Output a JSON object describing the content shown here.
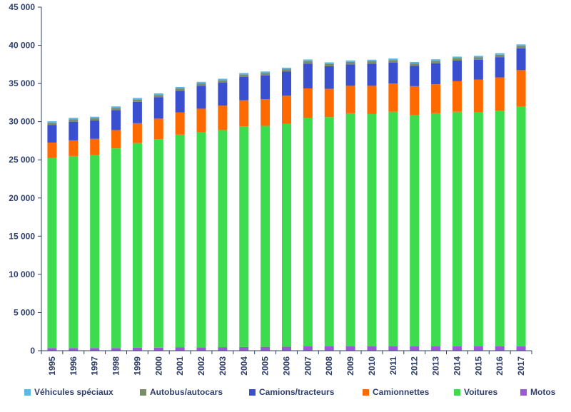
{
  "chart_data": {
    "type": "bar",
    "stacked": true,
    "title": "",
    "xlabel": "",
    "ylabel": "",
    "ylim": [
      0,
      45000
    ],
    "yticks": [
      0,
      5000,
      10000,
      15000,
      20000,
      25000,
      30000,
      35000,
      40000,
      45000
    ],
    "ytick_labels": [
      "0",
      "5 000",
      "10 000",
      "15 000",
      "20 000",
      "25 000",
      "30 000",
      "35 000",
      "40 000",
      "45 000"
    ],
    "grid": false,
    "legend_position": "bottom",
    "categories": [
      "1995",
      "1996",
      "1997",
      "1998",
      "1999",
      "2000",
      "2001",
      "2002",
      "2003",
      "2004",
      "2005",
      "2006",
      "2007",
      "2008",
      "2009",
      "2010",
      "2011",
      "2012",
      "2013",
      "2014",
      "2015",
      "2016",
      "2017"
    ],
    "series": [
      {
        "name": "Motos",
        "color": "#9b59d6",
        "values": [
          350,
          350,
          350,
          350,
          380,
          400,
          420,
          440,
          460,
          480,
          500,
          520,
          560,
          560,
          560,
          560,
          560,
          560,
          560,
          560,
          560,
          560,
          580
        ]
      },
      {
        "name": "Voitures",
        "color": "#3ddc4e",
        "values": [
          24900,
          25150,
          25250,
          26150,
          26820,
          27300,
          27880,
          28160,
          28440,
          28920,
          28950,
          29180,
          29890,
          30040,
          30540,
          30440,
          30740,
          30290,
          30540,
          30740,
          30640,
          30840,
          31370
        ]
      },
      {
        "name": "Camionnettes",
        "color": "#ff6a00",
        "values": [
          2000,
          2050,
          2150,
          2400,
          2600,
          2700,
          2900,
          3100,
          3200,
          3400,
          3500,
          3700,
          3900,
          3700,
          3600,
          3700,
          3700,
          3800,
          3800,
          4000,
          4300,
          4400,
          4800
        ]
      },
      {
        "name": "Camions/tracteurs",
        "color": "#3a4fcf",
        "values": [
          2300,
          2450,
          2400,
          2600,
          2800,
          2800,
          2850,
          3000,
          3000,
          3050,
          3100,
          3150,
          3250,
          2950,
          2800,
          2900,
          2750,
          2650,
          2750,
          2700,
          2600,
          2650,
          2850
        ]
      },
      {
        "name": "Autobus/autocars",
        "color": "#7a8c6a",
        "values": [
          300,
          300,
          300,
          300,
          300,
          300,
          300,
          320,
          320,
          320,
          320,
          320,
          340,
          320,
          320,
          320,
          320,
          320,
          320,
          320,
          320,
          320,
          320
        ]
      },
      {
        "name": "Véhicules spéciaux",
        "color": "#5bb8e6",
        "values": [
          200,
          200,
          200,
          200,
          200,
          200,
          200,
          200,
          200,
          200,
          200,
          200,
          200,
          200,
          200,
          200,
          200,
          200,
          200,
          200,
          200,
          200,
          200
        ]
      }
    ],
    "legend_order": [
      "Véhicules spéciaux",
      "Autobus/autocars",
      "Camions/tracteurs",
      "Camionnettes",
      "Voitures",
      "Motos"
    ]
  }
}
